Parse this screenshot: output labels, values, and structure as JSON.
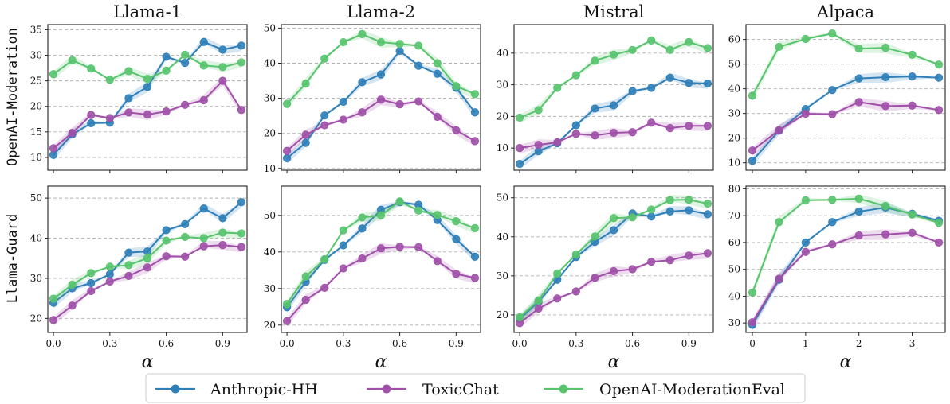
{
  "legend": {
    "placement": "bottom-center",
    "entries": [
      "Anthropic-HH",
      "ToxicChat",
      "OpenAI-ModerationEval"
    ]
  },
  "colors": {
    "Anthropic-HH": "#2f7fb8",
    "ToxicChat": "#a050a8",
    "OpenAI-ModerationEval": "#58c46e"
  },
  "row_labels": [
    "OpenAI-Moderation",
    "Llama-Guard"
  ],
  "column_titles": [
    "Llama-1",
    "Llama-2",
    "Mistral",
    "Alpaca"
  ],
  "xlabel": "α",
  "chart_data": [
    {
      "type": "line",
      "title": "Llama-1",
      "row": "OpenAI-Moderation",
      "xlabel": "α",
      "ylabel": "OpenAI-Moderation",
      "xlim": [
        -0.03,
        1.03
      ],
      "ylim": [
        7.5,
        36
      ],
      "xticks": [
        "0.0",
        "0.3",
        "0.6",
        "0.9"
      ],
      "xtick_values": [
        0,
        0.3,
        0.6,
        0.9
      ],
      "yticks": [
        10,
        15,
        20,
        25,
        30,
        35
      ],
      "grid": "horizontal-dashed",
      "x": [
        0,
        0.1,
        0.2,
        0.3,
        0.4,
        0.5,
        0.6,
        0.7,
        0.8,
        0.9,
        1.0
      ],
      "series": [
        {
          "name": "Anthropic-HH",
          "values": [
            10.5,
            14.5,
            16.7,
            16.8,
            21.6,
            23.8,
            29.7,
            28.5,
            32.6,
            31.1,
            31.9
          ]
        },
        {
          "name": "ToxicChat",
          "values": [
            11.8,
            14.8,
            18.3,
            17.7,
            18.8,
            18.4,
            19.0,
            20.3,
            21.2,
            25.0,
            19.3
          ]
        },
        {
          "name": "OpenAI-ModerationEval",
          "values": [
            26.3,
            29.0,
            27.4,
            25.2,
            26.9,
            25.4,
            27.0,
            30.1,
            28.0,
            27.7,
            28.6
          ]
        }
      ]
    },
    {
      "type": "line",
      "title": "Llama-2",
      "row": "OpenAI-Moderation",
      "xlabel": "α",
      "xlim": [
        -0.03,
        1.03
      ],
      "ylim": [
        9.5,
        51
      ],
      "xticks": [
        "0.0",
        "0.3",
        "0.6",
        "0.9"
      ],
      "xtick_values": [
        0,
        0.3,
        0.6,
        0.9
      ],
      "yticks": [
        10,
        20,
        30,
        40,
        50
      ],
      "grid": "horizontal-dashed",
      "x": [
        0,
        0.1,
        0.2,
        0.3,
        0.4,
        0.5,
        0.6,
        0.7,
        0.8,
        0.9,
        1.0
      ],
      "series": [
        {
          "name": "Anthropic-HH",
          "values": [
            12.9,
            17.3,
            25.1,
            29.0,
            34.6,
            36.8,
            43.5,
            39.3,
            37.0,
            33.0,
            26.0
          ]
        },
        {
          "name": "ToxicChat",
          "values": [
            15.0,
            19.6,
            22.3,
            23.9,
            26.0,
            29.6,
            28.3,
            29.1,
            24.7,
            20.9,
            17.8
          ]
        },
        {
          "name": "OpenAI-ModerationEval",
          "values": [
            28.4,
            34.2,
            41.3,
            46.0,
            48.3,
            46.0,
            45.5,
            45.0,
            40.0,
            33.5,
            31.2
          ]
        }
      ]
    },
    {
      "type": "line",
      "title": "Mistral",
      "row": "OpenAI-Moderation",
      "xlabel": "α",
      "xlim": [
        -0.03,
        1.03
      ],
      "ylim": [
        3,
        49
      ],
      "xticks": [
        "0.0",
        "0.3",
        "0.6",
        "0.9"
      ],
      "xtick_values": [
        0,
        0.3,
        0.6,
        0.9
      ],
      "yticks": [
        10,
        20,
        30,
        40
      ],
      "grid": "horizontal-dashed",
      "x": [
        0,
        0.1,
        0.2,
        0.3,
        0.4,
        0.5,
        0.6,
        0.7,
        0.8,
        0.9,
        1.0
      ],
      "series": [
        {
          "name": "Anthropic-HH",
          "values": [
            5.0,
            9.0,
            11.5,
            17.2,
            22.5,
            23.5,
            28.0,
            29.0,
            32.2,
            30.6,
            30.4
          ]
        },
        {
          "name": "ToxicChat",
          "values": [
            10.0,
            11.0,
            11.8,
            14.5,
            14.0,
            14.8,
            15.0,
            18.0,
            16.3,
            17.0,
            17.0
          ]
        },
        {
          "name": "OpenAI-ModerationEval",
          "values": [
            19.6,
            22.0,
            29.0,
            33.0,
            37.6,
            39.5,
            41.0,
            44.0,
            41.0,
            43.5,
            41.6
          ]
        }
      ]
    },
    {
      "type": "line",
      "title": "Alpaca",
      "row": "OpenAI-Moderation",
      "xlabel": "α",
      "xlim": [
        -0.12,
        3.62
      ],
      "ylim": [
        7,
        66
      ],
      "xticks": [
        "0",
        "1",
        "2",
        "3"
      ],
      "xtick_values": [
        0,
        1,
        2,
        3
      ],
      "yticks": [
        10,
        20,
        30,
        40,
        50,
        60
      ],
      "grid": "horizontal-dashed",
      "x": [
        0,
        0.5,
        1.0,
        1.5,
        2.0,
        2.5,
        3.0,
        3.5
      ],
      "series": [
        {
          "name": "Anthropic-HH",
          "values": [
            10.8,
            23.0,
            31.8,
            39.5,
            44.2,
            44.7,
            45.0,
            44.5
          ]
        },
        {
          "name": "ToxicChat",
          "values": [
            15.0,
            23.2,
            29.9,
            29.7,
            34.6,
            33.0,
            33.2,
            31.4
          ]
        },
        {
          "name": "OpenAI-ModerationEval",
          "values": [
            37.2,
            57.0,
            60.2,
            62.4,
            56.3,
            56.6,
            53.8,
            49.8
          ]
        }
      ]
    },
    {
      "type": "line",
      "title": "",
      "row": "Llama-Guard",
      "xlabel": "α",
      "ylabel": "Llama-Guard",
      "xlim": [
        -0.03,
        1.03
      ],
      "ylim": [
        16.5,
        53
      ],
      "xticks": [
        "0.0",
        "0.3",
        "0.6",
        "0.9"
      ],
      "xtick_values": [
        0,
        0.3,
        0.6,
        0.9
      ],
      "yticks": [
        20,
        30,
        40,
        50
      ],
      "grid": "horizontal-dashed",
      "x": [
        0,
        0.1,
        0.2,
        0.3,
        0.4,
        0.5,
        0.6,
        0.7,
        0.8,
        0.9,
        1.0
      ],
      "series": [
        {
          "name": "Anthropic-HH",
          "values": [
            23.9,
            27.5,
            28.8,
            31.0,
            36.4,
            36.7,
            42.0,
            43.5,
            47.4,
            45.0,
            49.0
          ]
        },
        {
          "name": "ToxicChat",
          "values": [
            19.6,
            23.2,
            26.8,
            29.2,
            30.6,
            32.7,
            35.5,
            35.4,
            38.0,
            38.3,
            37.8
          ]
        },
        {
          "name": "OpenAI-ModerationEval",
          "values": [
            24.9,
            28.4,
            31.3,
            32.9,
            33.3,
            35.0,
            39.4,
            40.3,
            40.0,
            41.4,
            41.2
          ]
        }
      ]
    },
    {
      "type": "line",
      "title": "",
      "row": "Llama-Guard",
      "xlabel": "α",
      "xlim": [
        -0.03,
        1.03
      ],
      "ylim": [
        18,
        58
      ],
      "xticks": [
        "0.0",
        "0.3",
        "0.6",
        "0.9"
      ],
      "xtick_values": [
        0,
        0.3,
        0.6,
        0.9
      ],
      "yticks": [
        20,
        30,
        40,
        50
      ],
      "grid": "horizontal-dashed",
      "x": [
        0,
        0.1,
        0.2,
        0.3,
        0.4,
        0.5,
        0.6,
        0.7,
        0.8,
        0.9,
        1.0
      ],
      "series": [
        {
          "name": "Anthropic-HH",
          "values": [
            24.9,
            31.8,
            37.8,
            41.8,
            46.4,
            51.5,
            53.6,
            52.9,
            48.7,
            43.5,
            38.7
          ]
        },
        {
          "name": "ToxicChat",
          "values": [
            21.1,
            26.9,
            30.2,
            35.5,
            38.2,
            41.0,
            41.4,
            41.3,
            37.5,
            34.0,
            32.9
          ]
        },
        {
          "name": "OpenAI-ModerationEval",
          "values": [
            25.8,
            33.3,
            38.0,
            45.9,
            49.4,
            50.0,
            53.8,
            51.3,
            50.1,
            48.4,
            46.5
          ]
        }
      ]
    },
    {
      "type": "line",
      "title": "",
      "row": "Llama-Guard",
      "xlabel": "α",
      "xlim": [
        -0.03,
        1.03
      ],
      "ylim": [
        15.5,
        53
      ],
      "xticks": [
        "0.0",
        "0.3",
        "0.6",
        "0.9"
      ],
      "xtick_values": [
        0,
        0.3,
        0.6,
        0.9
      ],
      "yticks": [
        20,
        30,
        40,
        50
      ],
      "grid": "horizontal-dashed",
      "x": [
        0,
        0.1,
        0.2,
        0.3,
        0.4,
        0.5,
        0.6,
        0.7,
        0.8,
        0.9,
        1.0
      ],
      "series": [
        {
          "name": "Anthropic-HH",
          "values": [
            19.0,
            23.3,
            29.0,
            34.8,
            38.7,
            41.7,
            46.0,
            45.2,
            46.5,
            46.8,
            45.8
          ]
        },
        {
          "name": "ToxicChat",
          "values": [
            17.9,
            21.6,
            24.2,
            26.0,
            29.5,
            31.2,
            31.7,
            33.6,
            34.0,
            35.2,
            35.8
          ]
        },
        {
          "name": "OpenAI-ModerationEval",
          "values": [
            19.4,
            23.7,
            30.6,
            35.5,
            40.1,
            44.8,
            45.0,
            47.0,
            49.4,
            49.5,
            48.5
          ]
        }
      ]
    },
    {
      "type": "line",
      "title": "",
      "row": "Llama-Guard",
      "xlabel": "α",
      "xlim": [
        -0.12,
        3.62
      ],
      "ylim": [
        26.5,
        81
      ],
      "xticks": [
        "0",
        "1",
        "2",
        "3"
      ],
      "xtick_values": [
        0,
        1,
        2,
        3
      ],
      "yticks": [
        30,
        40,
        50,
        60,
        70,
        80
      ],
      "grid": "horizontal-dashed",
      "x": [
        0,
        0.5,
        1.0,
        1.5,
        2.0,
        2.5,
        3.0,
        3.5
      ],
      "series": [
        {
          "name": "Anthropic-HH",
          "values": [
            29.3,
            46.1,
            60.0,
            67.6,
            71.5,
            73.0,
            70.7,
            68.1
          ]
        },
        {
          "name": "ToxicChat",
          "values": [
            30.3,
            46.5,
            56.5,
            59.3,
            62.6,
            63.0,
            63.6,
            60.0
          ]
        },
        {
          "name": "OpenAI-ModerationEval",
          "values": [
            41.3,
            67.6,
            75.7,
            75.9,
            76.3,
            73.6,
            70.4,
            67.3
          ]
        }
      ]
    }
  ]
}
